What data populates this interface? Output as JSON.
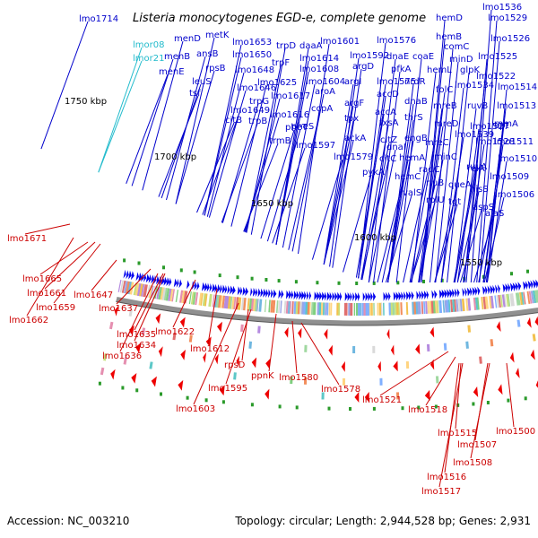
{
  "title": "Listeria monocytogenes EGD-e, complete genome",
  "footer": {
    "accession": "Accession: NC_003210",
    "topology": "Topology: circular; Length: 2,944,528 bp; Genes: 2,931"
  },
  "colors": {
    "forward_label": "#0000cc",
    "reverse_label": "#cc0000",
    "special_label": "#22bbcc",
    "axis": "#909090",
    "forward_gene": "#0000ee",
    "reverse_gene": "#ee0000"
  },
  "kbp_ticks": [
    "1750 kbp",
    "1700 kbp",
    "1650 kbp",
    "1600 kbp",
    "1550 kbp"
  ],
  "forward_labels": [
    "lmo1714",
    "lmor08",
    "lmor21",
    "menD",
    "metK",
    "menB",
    "ansB",
    "menE",
    "rpsB",
    "leuS",
    "tsf",
    "lmo1653",
    "lmo1650",
    "lmo1648",
    "lmo1646",
    "lmo1649",
    "citB",
    "trpD",
    "trpF",
    "trpG",
    "trpB",
    "lmo1625",
    "lmo1617",
    "lmo1616",
    "trmB",
    "daaA",
    "lmo1614",
    "lmo1608",
    "lmo1604",
    "aroA",
    "pheT",
    "pheS",
    "lmo1597",
    "lmo1601",
    "lmo1592",
    "argD",
    "argI",
    "argF",
    "ccpA",
    "tpx",
    "ackA",
    "lmo1579",
    "lmo1576",
    "lmo1575",
    "dnaE",
    "pfkA",
    "accD",
    "accA",
    "fxsA",
    "citZ",
    "citC",
    "pykA",
    "coaE",
    "hemL",
    "nrdR",
    "dnaB",
    "thrS",
    "engB",
    "dnaI",
    "hemA",
    "hemC",
    "valS",
    "rplU",
    "hemD",
    "hemB",
    "comC",
    "minD",
    "glpK",
    "lmo1534",
    "folC",
    "mreB",
    "mreD",
    "mreC",
    "minC",
    "radC",
    "rluB",
    "queA",
    "tgt",
    "lmo1539",
    "lmo1536",
    "lmo1529",
    "lmo1526",
    "lmo1525",
    "lmo1522",
    "lmo1514",
    "lmo1513",
    "ruvB",
    "lmo1527",
    "lmo1528",
    "ruvA",
    "rnmA",
    "lmo1511",
    "lmo1510",
    "lmo1509",
    "apt",
    "relA",
    "hisS",
    "aspS",
    "lmo1506",
    "alaS"
  ],
  "reverse_labels": [
    "lmo1671",
    "lmo1665",
    "lmo1661",
    "lmo1659",
    "lmo1662",
    "lmo1647",
    "lmo1637",
    "lmo1635",
    "lmo1634",
    "lmo1636",
    "lmo1622",
    "lmo1612",
    "lmo1603",
    "rpsD",
    "lmo1595",
    "ppnK",
    "lmo1580",
    "lmo1578",
    "lmo1521",
    "lmo1518",
    "lmo1515",
    "lmo1516",
    "lmo1517",
    "lmo1507",
    "lmo1508",
    "lmo1500"
  ]
}
